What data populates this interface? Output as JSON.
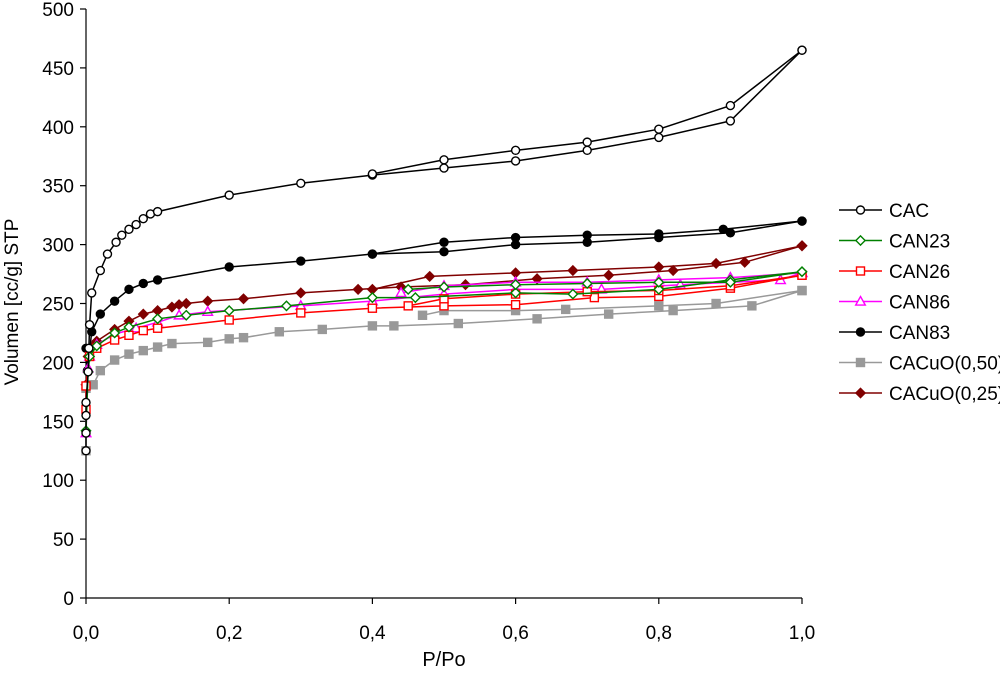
{
  "chart_data": {
    "type": "line",
    "title": "",
    "xlabel": "P/Po",
    "ylabel": "Volumen [cc/g] STP",
    "xlim": [
      0,
      1
    ],
    "ylim": [
      0,
      500
    ],
    "x_ticks": [
      0,
      0.2,
      0.4,
      0.6,
      0.8,
      1.0
    ],
    "x_tick_labels": [
      "0,0",
      "0,2",
      "0,4",
      "0,6",
      "0,8",
      "1,0"
    ],
    "y_ticks": [
      0,
      50,
      100,
      150,
      200,
      250,
      300,
      350,
      400,
      450,
      500
    ],
    "y_tick_labels": [
      "0",
      "50",
      "100",
      "150",
      "200",
      "250",
      "300",
      "350",
      "400",
      "450",
      "500"
    ],
    "grid": false,
    "legend_position": "right",
    "series": [
      {
        "name": "CAC",
        "color": "#000000",
        "marker": "circle-open",
        "adsorption": [
          [
            0.0,
            125
          ],
          [
            0.0,
            140
          ],
          [
            0.0,
            155
          ],
          [
            0.0,
            166
          ],
          [
            0.003,
            192
          ],
          [
            0.004,
            212
          ],
          [
            0.005,
            232
          ],
          [
            0.008,
            259
          ],
          [
            0.02,
            278
          ],
          [
            0.03,
            292
          ],
          [
            0.042,
            302
          ],
          [
            0.05,
            308
          ],
          [
            0.06,
            313
          ],
          [
            0.07,
            317
          ],
          [
            0.08,
            322
          ],
          [
            0.09,
            326
          ],
          [
            0.1,
            328
          ],
          [
            0.2,
            342
          ],
          [
            0.3,
            352
          ],
          [
            0.4,
            359
          ],
          [
            0.5,
            365
          ],
          [
            0.6,
            371
          ],
          [
            0.7,
            380
          ],
          [
            0.8,
            391
          ],
          [
            0.9,
            405
          ],
          [
            1.0,
            465
          ]
        ],
        "desorption": [
          [
            1.0,
            465
          ],
          [
            0.9,
            418
          ],
          [
            0.8,
            398
          ],
          [
            0.7,
            387
          ],
          [
            0.6,
            380
          ],
          [
            0.5,
            372
          ],
          [
            0.4,
            360
          ]
        ]
      },
      {
        "name": "CAN23",
        "color": "#008000",
        "marker": "diamond-open",
        "adsorption": [
          [
            0.0,
            142
          ],
          [
            0.003,
            192
          ],
          [
            0.005,
            205
          ],
          [
            0.015,
            214
          ],
          [
            0.04,
            225
          ],
          [
            0.06,
            230
          ],
          [
            0.1,
            237
          ],
          [
            0.14,
            240
          ],
          [
            0.2,
            244
          ],
          [
            0.28,
            248
          ],
          [
            0.4,
            255
          ],
          [
            0.46,
            255
          ],
          [
            0.6,
            259
          ],
          [
            0.68,
            258
          ],
          [
            0.8,
            262
          ],
          [
            0.9,
            270
          ],
          [
            1.0,
            277
          ]
        ],
        "desorption": [
          [
            1.0,
            277
          ],
          [
            0.9,
            268
          ],
          [
            0.8,
            268
          ],
          [
            0.7,
            267
          ],
          [
            0.6,
            266
          ],
          [
            0.5,
            264
          ],
          [
            0.45,
            262
          ]
        ]
      },
      {
        "name": "CAN26",
        "color": "#ff0000",
        "marker": "square-open",
        "adsorption": [
          [
            0.0,
            160
          ],
          [
            0.0,
            180
          ],
          [
            0.005,
            205
          ],
          [
            0.015,
            212
          ],
          [
            0.04,
            219
          ],
          [
            0.06,
            223
          ],
          [
            0.08,
            227
          ],
          [
            0.1,
            229
          ],
          [
            0.2,
            236
          ],
          [
            0.3,
            242
          ],
          [
            0.4,
            246
          ],
          [
            0.5,
            248
          ],
          [
            0.6,
            249
          ],
          [
            0.71,
            255
          ],
          [
            0.8,
            256
          ],
          [
            0.9,
            263
          ],
          [
            1.0,
            274
          ]
        ],
        "desorption": [
          [
            1.0,
            274
          ],
          [
            0.9,
            265
          ],
          [
            0.8,
            261
          ],
          [
            0.7,
            260
          ],
          [
            0.6,
            258
          ],
          [
            0.5,
            254
          ],
          [
            0.45,
            248
          ]
        ]
      },
      {
        "name": "CAN86",
        "color": "#ff00ff",
        "marker": "triangle-open",
        "adsorption": [
          [
            0.0,
            140
          ],
          [
            0.003,
            195
          ],
          [
            0.005,
            205
          ],
          [
            0.015,
            215
          ],
          [
            0.04,
            224
          ],
          [
            0.07,
            229
          ],
          [
            0.1,
            234
          ],
          [
            0.13,
            240
          ],
          [
            0.17,
            243
          ],
          [
            0.3,
            248
          ],
          [
            0.4,
            252
          ],
          [
            0.5,
            258
          ],
          [
            0.6,
            262
          ],
          [
            0.72,
            262
          ],
          [
            0.83,
            266
          ],
          [
            0.97,
            270
          ],
          [
            1.0,
            276
          ]
        ],
        "desorption": [
          [
            1.0,
            276
          ],
          [
            0.9,
            272
          ],
          [
            0.8,
            270
          ],
          [
            0.7,
            268
          ],
          [
            0.6,
            268
          ],
          [
            0.5,
            265
          ],
          [
            0.44,
            259
          ]
        ]
      },
      {
        "name": "CAN83",
        "color": "#000000",
        "marker": "circle-filled",
        "adsorption": [
          [
            0.0,
            212
          ],
          [
            0.002,
            193
          ],
          [
            0.008,
            226
          ],
          [
            0.02,
            241
          ],
          [
            0.04,
            252
          ],
          [
            0.06,
            262
          ],
          [
            0.08,
            267
          ],
          [
            0.1,
            270
          ],
          [
            0.2,
            281
          ],
          [
            0.3,
            286
          ],
          [
            0.4,
            292
          ],
          [
            0.5,
            294
          ],
          [
            0.6,
            300
          ],
          [
            0.7,
            302
          ],
          [
            0.8,
            306
          ],
          [
            0.9,
            310
          ],
          [
            1.0,
            320
          ]
        ],
        "desorption": [
          [
            1.0,
            320
          ],
          [
            0.89,
            313
          ],
          [
            0.8,
            309
          ],
          [
            0.7,
            308
          ],
          [
            0.6,
            306
          ],
          [
            0.5,
            302
          ],
          [
            0.4,
            292
          ]
        ]
      },
      {
        "name": "CACuO(0,50)",
        "color": "#999999",
        "marker": "square-filled",
        "adsorption": [
          [
            0.0,
            125
          ],
          [
            0.0,
            178
          ],
          [
            0.01,
            181
          ],
          [
            0.02,
            193
          ],
          [
            0.04,
            202
          ],
          [
            0.06,
            207
          ],
          [
            0.08,
            210
          ],
          [
            0.1,
            213
          ],
          [
            0.12,
            216
          ],
          [
            0.17,
            217
          ],
          [
            0.2,
            220
          ],
          [
            0.22,
            221
          ],
          [
            0.27,
            226
          ],
          [
            0.33,
            228
          ],
          [
            0.4,
            231
          ],
          [
            0.43,
            231
          ],
          [
            0.52,
            233
          ],
          [
            0.63,
            237
          ],
          [
            0.73,
            241
          ],
          [
            0.82,
            244
          ],
          [
            0.93,
            248
          ],
          [
            1.0,
            261
          ]
        ],
        "desorption": [
          [
            1.0,
            261
          ],
          [
            0.88,
            250
          ],
          [
            0.8,
            248
          ],
          [
            0.67,
            245
          ],
          [
            0.6,
            244
          ],
          [
            0.5,
            244
          ],
          [
            0.47,
            240
          ]
        ]
      },
      {
        "name": "CACuO(0,25)",
        "color": "#800000",
        "marker": "diamond-filled",
        "adsorption": [
          [
            0.0,
            181
          ],
          [
            0.003,
            205
          ],
          [
            0.005,
            210
          ],
          [
            0.01,
            214
          ],
          [
            0.015,
            218
          ],
          [
            0.04,
            228
          ],
          [
            0.06,
            235
          ],
          [
            0.08,
            241
          ],
          [
            0.1,
            244
          ],
          [
            0.12,
            247
          ],
          [
            0.13,
            249
          ],
          [
            0.14,
            250
          ],
          [
            0.17,
            252
          ],
          [
            0.22,
            254
          ],
          [
            0.3,
            259
          ],
          [
            0.38,
            262
          ],
          [
            0.44,
            264
          ],
          [
            0.53,
            266
          ],
          [
            0.63,
            271
          ],
          [
            0.73,
            274
          ],
          [
            0.82,
            278
          ],
          [
            0.92,
            285
          ],
          [
            1.0,
            299
          ]
        ],
        "desorption": [
          [
            1.0,
            299
          ],
          [
            0.88,
            284
          ],
          [
            0.8,
            281
          ],
          [
            0.68,
            278
          ],
          [
            0.6,
            276
          ],
          [
            0.48,
            273
          ],
          [
            0.4,
            262
          ]
        ]
      }
    ]
  }
}
